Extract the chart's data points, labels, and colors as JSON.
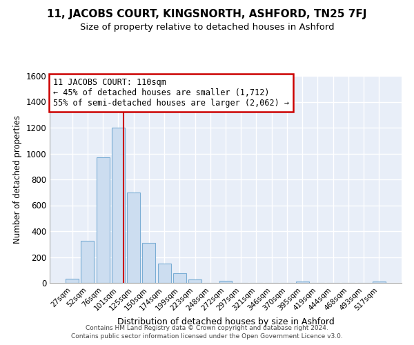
{
  "title": "11, JACOBS COURT, KINGSNORTH, ASHFORD, TN25 7FJ",
  "subtitle": "Size of property relative to detached houses in Ashford",
  "xlabel": "Distribution of detached houses by size in Ashford",
  "ylabel": "Number of detached properties",
  "bar_labels": [
    "27sqm",
    "52sqm",
    "76sqm",
    "101sqm",
    "125sqm",
    "150sqm",
    "174sqm",
    "199sqm",
    "223sqm",
    "248sqm",
    "272sqm",
    "297sqm",
    "321sqm",
    "346sqm",
    "370sqm",
    "395sqm",
    "419sqm",
    "444sqm",
    "468sqm",
    "493sqm",
    "517sqm"
  ],
  "bar_values": [
    30,
    325,
    970,
    1200,
    700,
    310,
    150,
    75,
    25,
    0,
    18,
    0,
    0,
    0,
    0,
    10,
    0,
    0,
    0,
    0,
    10
  ],
  "bar_color": "#ccddf0",
  "bar_edge_color": "#7aadd4",
  "vline_color": "#cc0000",
  "annotation_text": "11 JACOBS COURT: 110sqm\n← 45% of detached houses are smaller (1,712)\n55% of semi-detached houses are larger (2,062) →",
  "annotation_box_color": "#ffffff",
  "annotation_box_edge": "#cc0000",
  "ylim": [
    0,
    1600
  ],
  "yticks": [
    0,
    200,
    400,
    600,
    800,
    1000,
    1200,
    1400,
    1600
  ],
  "footer1": "Contains HM Land Registry data © Crown copyright and database right 2024.",
  "footer2": "Contains public sector information licensed under the Open Government Licence v3.0.",
  "bg_color": "#ffffff",
  "plot_bg_color": "#e8eef8",
  "grid_color": "#ffffff",
  "title_fontsize": 11,
  "subtitle_fontsize": 9.5
}
